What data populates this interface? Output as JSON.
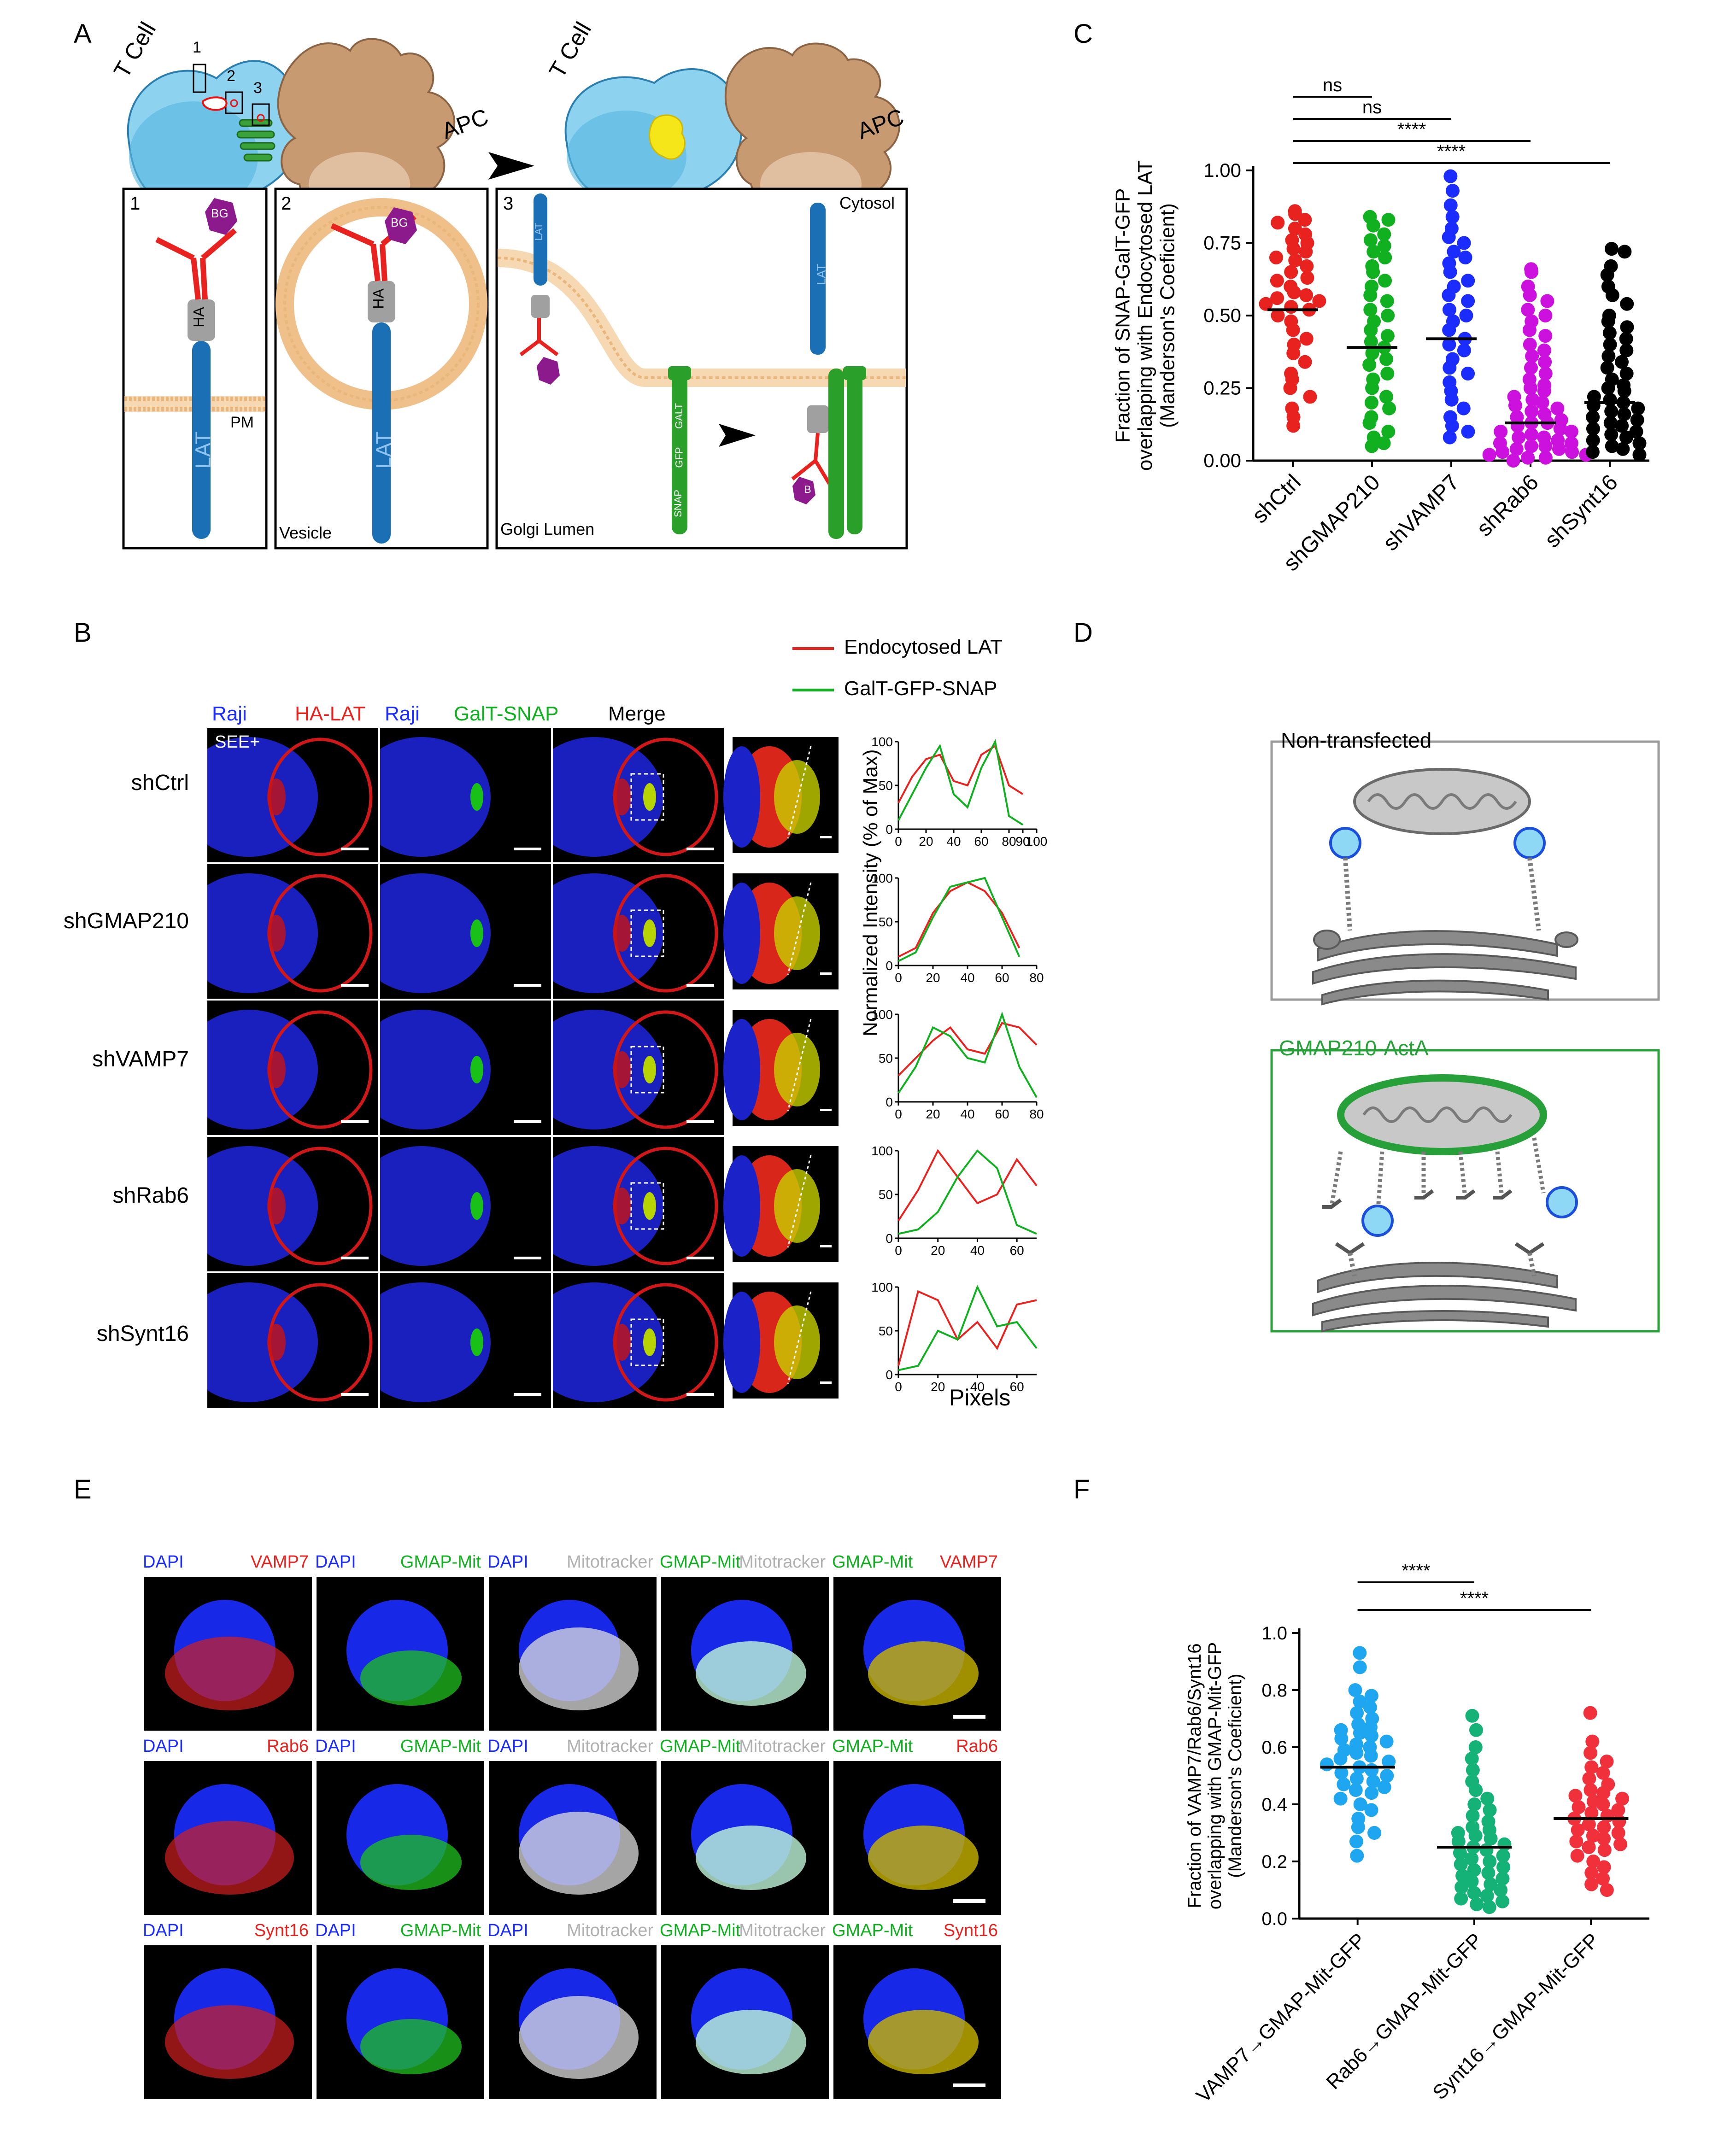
{
  "panels": {
    "A": "A",
    "B": "B",
    "C": "C",
    "D": "D",
    "E": "E",
    "F": "F"
  },
  "panelA": {
    "t_cell": "T Cell",
    "apc": "APC",
    "t_cell_right": "T Cell",
    "apc_right": "APC",
    "box_num_1": "1",
    "box_num_2": "2",
    "box_num_3": "3",
    "sub1": "1",
    "sub2": "2",
    "sub3": "3",
    "bg": "BG",
    "ha": "HA",
    "lat": "LAT",
    "pm": "PM",
    "vesicle": "Vesicle",
    "cytosol": "Cytosol",
    "golgi_lumen": "Golgi Lumen",
    "snap": "SNAP",
    "gfp": "GFP",
    "galt": "GALT",
    "b": "B"
  },
  "panelB": {
    "legend": [
      "Endocytosed LAT",
      "GalT-GFP-SNAP"
    ],
    "col_headers": [
      {
        "a": "Raji",
        "b": "HA-LAT"
      },
      {
        "a": "Raji",
        "b": "GalT-SNAP"
      },
      {
        "a": "Merge",
        "b": ""
      }
    ],
    "see": "SEE+",
    "rows": [
      "shCtrl",
      "shGMAP210",
      "shVAMP7",
      "shRab6",
      "shSynt16"
    ],
    "ylabel": "Normalized Intensity (% of Max)",
    "xlabel": "Pixels",
    "tick_y": [
      "100",
      "50",
      "0"
    ],
    "line_ticks": [
      [
        "0",
        "20",
        "40",
        "60",
        "80",
        "90",
        "100"
      ],
      [
        "0",
        "20",
        "40",
        "60",
        "80"
      ],
      [
        "0",
        "20",
        "40",
        "60",
        "80"
      ],
      [
        "0",
        "20",
        "40",
        "60"
      ],
      [
        "0",
        "20",
        "40",
        "60"
      ]
    ]
  },
  "colors": {
    "red": "#e8231f",
    "green": "#10b020",
    "blue": "#1a2cff",
    "magenta": "#cc10dd",
    "black": "#000000",
    "lightblue": "#1ea7f0",
    "teal": "#14b277",
    "coral": "#f0303a",
    "lat_blue": "#1a6fb5",
    "golgi_green": "#2aa02a"
  },
  "chart_data": [
    {
      "type": "scatter",
      "title": "",
      "ylabel": "Fraction of SNAP-GalT-GFP overlapping with Endocytosed LAT (Manderson's Coeficient)",
      "ylim": [
        0,
        1.0
      ],
      "yticks": [
        "0.00",
        "0.25",
        "0.50",
        "0.75",
        "1.00"
      ],
      "categories": [
        "shCtrl",
        "shGMAP210",
        "shVAMP7",
        "shRab6",
        "shSynt16"
      ],
      "medians": [
        0.52,
        0.39,
        0.42,
        0.13,
        0.2
      ],
      "significance": [
        {
          "from": "shCtrl",
          "to": "shGMAP210",
          "label": "ns"
        },
        {
          "from": "shCtrl",
          "to": "shVAMP7",
          "label": "ns"
        },
        {
          "from": "shCtrl",
          "to": "shRab6",
          "label": "****"
        },
        {
          "from": "shCtrl",
          "to": "shSynt16",
          "label": "****"
        }
      ],
      "series": [
        {
          "name": "shCtrl",
          "values": [
            0.86,
            0.85,
            0.83,
            0.82,
            0.8,
            0.78,
            0.76,
            0.75,
            0.73,
            0.72,
            0.7,
            0.69,
            0.67,
            0.65,
            0.63,
            0.62,
            0.6,
            0.58,
            0.57,
            0.56,
            0.55,
            0.54,
            0.53,
            0.52,
            0.5,
            0.48,
            0.45,
            0.42,
            0.4,
            0.37,
            0.34,
            0.3,
            0.28,
            0.25,
            0.22,
            0.18,
            0.15,
            0.12
          ]
        },
        {
          "name": "shGMAP210",
          "values": [
            0.84,
            0.83,
            0.81,
            0.78,
            0.76,
            0.74,
            0.72,
            0.7,
            0.67,
            0.65,
            0.62,
            0.6,
            0.57,
            0.55,
            0.52,
            0.5,
            0.48,
            0.45,
            0.43,
            0.41,
            0.39,
            0.37,
            0.35,
            0.33,
            0.3,
            0.28,
            0.25,
            0.22,
            0.2,
            0.18,
            0.15,
            0.13,
            0.1,
            0.08,
            0.06,
            0.05
          ]
        },
        {
          "name": "shVAMP7",
          "values": [
            0.98,
            0.93,
            0.88,
            0.84,
            0.8,
            0.77,
            0.75,
            0.72,
            0.7,
            0.68,
            0.65,
            0.62,
            0.6,
            0.57,
            0.55,
            0.52,
            0.5,
            0.48,
            0.45,
            0.42,
            0.4,
            0.38,
            0.35,
            0.32,
            0.3,
            0.27,
            0.24,
            0.21,
            0.18,
            0.15,
            0.12,
            0.1,
            0.08
          ]
        },
        {
          "name": "shRab6",
          "values": [
            0.66,
            0.65,
            0.6,
            0.57,
            0.55,
            0.52,
            0.5,
            0.48,
            0.45,
            0.43,
            0.4,
            0.38,
            0.36,
            0.34,
            0.32,
            0.3,
            0.28,
            0.26,
            0.25,
            0.24,
            0.22,
            0.21,
            0.2,
            0.19,
            0.18,
            0.17,
            0.16,
            0.15,
            0.14,
            0.13,
            0.13,
            0.12,
            0.11,
            0.1,
            0.1,
            0.09,
            0.08,
            0.08,
            0.07,
            0.06,
            0.06,
            0.05,
            0.05,
            0.04,
            0.04,
            0.03,
            0.03,
            0.02,
            0.02,
            0.01,
            0.01,
            0.0
          ]
        },
        {
          "name": "shSynt16",
          "values": [
            0.73,
            0.72,
            0.67,
            0.64,
            0.6,
            0.57,
            0.54,
            0.5,
            0.48,
            0.46,
            0.44,
            0.42,
            0.4,
            0.38,
            0.36,
            0.34,
            0.32,
            0.3,
            0.28,
            0.26,
            0.25,
            0.24,
            0.22,
            0.21,
            0.2,
            0.19,
            0.18,
            0.17,
            0.16,
            0.15,
            0.14,
            0.13,
            0.12,
            0.11,
            0.1,
            0.09,
            0.08,
            0.07,
            0.06,
            0.05,
            0.04,
            0.03,
            0.02
          ]
        }
      ]
    },
    {
      "type": "scatter",
      "title": "",
      "ylabel": "Fraction of VAMP7/Rab6/Synt16 overlapping with GMAP-Mit-GFP (Manderson's Coeficient)",
      "ylim": [
        0,
        1.0
      ],
      "yticks": [
        "0.0",
        "0.2",
        "0.4",
        "0.6",
        "0.8",
        "1.0"
      ],
      "categories": [
        "VAMP7→GMAP-Mit-GFP",
        "Rab6→GMAP-Mit-GFP",
        "Synt16→GMAP-Mit-GFP"
      ],
      "medians": [
        0.53,
        0.25,
        0.35
      ],
      "significance": [
        {
          "from": "VAMP7→GMAP-Mit-GFP",
          "to": "Rab6→GMAP-Mit-GFP",
          "label": "****"
        },
        {
          "from": "VAMP7→GMAP-Mit-GFP",
          "to": "Synt16→GMAP-Mit-GFP",
          "label": "****"
        }
      ],
      "series": [
        {
          "name": "VAMP7→GMAP-Mit-GFP",
          "values": [
            0.93,
            0.88,
            0.8,
            0.78,
            0.76,
            0.74,
            0.72,
            0.7,
            0.68,
            0.67,
            0.66,
            0.65,
            0.64,
            0.63,
            0.62,
            0.61,
            0.6,
            0.59,
            0.58,
            0.57,
            0.56,
            0.55,
            0.54,
            0.53,
            0.52,
            0.51,
            0.5,
            0.49,
            0.48,
            0.47,
            0.46,
            0.45,
            0.44,
            0.42,
            0.4,
            0.38,
            0.35,
            0.32,
            0.3,
            0.27,
            0.22
          ]
        },
        {
          "name": "Rab6→GMAP-Mit-GFP",
          "values": [
            0.71,
            0.66,
            0.6,
            0.56,
            0.52,
            0.48,
            0.45,
            0.42,
            0.4,
            0.38,
            0.36,
            0.34,
            0.32,
            0.31,
            0.3,
            0.29,
            0.28,
            0.27,
            0.26,
            0.25,
            0.24,
            0.23,
            0.22,
            0.21,
            0.2,
            0.19,
            0.18,
            0.17,
            0.16,
            0.15,
            0.14,
            0.13,
            0.12,
            0.11,
            0.1,
            0.09,
            0.08,
            0.07,
            0.06,
            0.05,
            0.04
          ]
        },
        {
          "name": "Synt16→GMAP-Mit-GFP",
          "values": [
            0.72,
            0.62,
            0.58,
            0.55,
            0.53,
            0.51,
            0.49,
            0.47,
            0.45,
            0.44,
            0.43,
            0.42,
            0.41,
            0.4,
            0.39,
            0.38,
            0.37,
            0.36,
            0.35,
            0.34,
            0.33,
            0.32,
            0.31,
            0.3,
            0.29,
            0.28,
            0.27,
            0.26,
            0.25,
            0.24,
            0.22,
            0.2,
            0.18,
            0.16,
            0.14,
            0.12,
            0.1
          ]
        }
      ]
    }
  ],
  "panelD": {
    "top_title": "Non-transfected",
    "bottom_title": "GMAP210-ActA"
  },
  "panelE": {
    "rows": [
      {
        "labels": [
          [
            "DAPI",
            "VAMP7"
          ],
          [
            "DAPI",
            "GMAP-Mit"
          ],
          [
            "DAPI",
            "Mitotracker"
          ],
          [
            "GMAP-Mit",
            "Mitotracker"
          ],
          [
            "GMAP-Mit",
            "VAMP7"
          ]
        ]
      },
      {
        "labels": [
          [
            "DAPI",
            "Rab6"
          ],
          [
            "DAPI",
            "GMAP-Mit"
          ],
          [
            "DAPI",
            "Mitotracker"
          ],
          [
            "GMAP-Mit",
            "Mitotracker"
          ],
          [
            "GMAP-Mit",
            "Rab6"
          ]
        ]
      },
      {
        "labels": [
          [
            "DAPI",
            "Synt16"
          ],
          [
            "DAPI",
            "GMAP-Mit"
          ],
          [
            "DAPI",
            "Mitotracker"
          ],
          [
            "GMAP-Mit",
            "Mitotracker"
          ],
          [
            "GMAP-Mit",
            "Synt16"
          ]
        ]
      }
    ]
  }
}
